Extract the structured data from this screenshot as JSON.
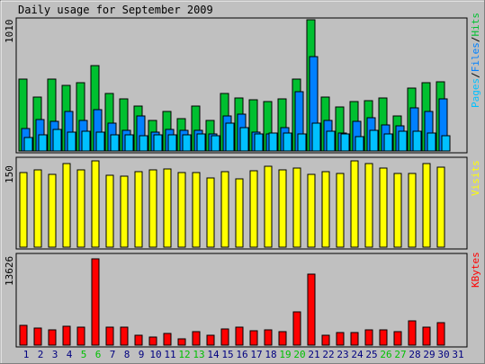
{
  "title": "Daily usage for September 2009",
  "colors": {
    "background": "#c0c0c0",
    "hits": "#00c030",
    "files": "#0080ff",
    "pages": "#00c0ff",
    "visits": "#ffff00",
    "kbytes": "#ff0000",
    "weekend_label": "#00c000",
    "weekday_label": "#000080"
  },
  "chart_data": [
    {
      "type": "bar",
      "name": "pages-files-hits",
      "ymax_label": "1010",
      "ylim": [
        0,
        1010
      ],
      "legend": [
        {
          "text": "Pages",
          "color": "#00c0ff"
        },
        {
          "text": "/",
          "color": "#000000"
        },
        {
          "text": "Files",
          "color": "#0080ff"
        },
        {
          "text": "/",
          "color": "#000000"
        },
        {
          "text": "Hits",
          "color": "#00c030"
        }
      ],
      "categories": [
        "1",
        "2",
        "3",
        "4",
        "5",
        "6",
        "7",
        "8",
        "9",
        "10",
        "11",
        "12",
        "13",
        "14",
        "15",
        "16",
        "17",
        "18",
        "19",
        "20",
        "21",
        "22",
        "23",
        "24",
        "25",
        "26",
        "27",
        "28",
        "29",
        "30",
        "31"
      ],
      "series": [
        {
          "name": "Hits",
          "values": [
            550,
            417,
            550,
            503,
            526,
            659,
            441,
            402,
            348,
            235,
            301,
            252,
            348,
            233,
            441,
            411,
            395,
            378,
            403,
            553,
            1010,
            413,
            336,
            380,
            386,
            409,
            267,
            483,
            527,
            534,
            0
          ]
        },
        {
          "name": "Files",
          "values": [
            171,
            241,
            225,
            301,
            234,
            318,
            216,
            161,
            267,
            146,
            163,
            157,
            156,
            134,
            272,
            286,
            145,
            132,
            179,
            454,
            725,
            233,
            141,
            229,
            253,
            199,
            196,
            335,
            302,
            402,
            0
          ]
        },
        {
          "name": "Pages",
          "values": [
            107,
            126,
            163,
            145,
            149,
            143,
            122,
            124,
            117,
            124,
            125,
            126,
            131,
            120,
            212,
            181,
            130,
            137,
            136,
            132,
            212,
            154,
            129,
            108,
            161,
            134,
            151,
            155,
            138,
            117,
            0
          ]
        }
      ]
    },
    {
      "type": "bar",
      "name": "visits",
      "ymax_label": "150",
      "ylim": [
        0,
        150
      ],
      "legend": [
        {
          "text": "Visits",
          "color": "#ffff00"
        }
      ],
      "categories": [
        "1",
        "2",
        "3",
        "4",
        "5",
        "6",
        "7",
        "8",
        "9",
        "10",
        "11",
        "12",
        "13",
        "14",
        "15",
        "16",
        "17",
        "18",
        "19",
        "20",
        "21",
        "22",
        "23",
        "24",
        "25",
        "26",
        "27",
        "28",
        "29",
        "30",
        "31"
      ],
      "series": [
        {
          "name": "Visits",
          "values": [
            129,
            134,
            127,
            146,
            134,
            150,
            125,
            124,
            131,
            134,
            136,
            130,
            129,
            120,
            131,
            118,
            133,
            140,
            135,
            138,
            127,
            132,
            128,
            150,
            146,
            137,
            128,
            128,
            145,
            139,
            0
          ]
        }
      ]
    },
    {
      "type": "bar",
      "name": "kbytes",
      "ymax_label": "13626",
      "ylim": [
        0,
        13626
      ],
      "legend": [
        {
          "text": "KBytes",
          "color": "#ff0000"
        }
      ],
      "categories": [
        "1",
        "2",
        "3",
        "4",
        "5",
        "6",
        "7",
        "8",
        "9",
        "10",
        "11",
        "12",
        "13",
        "14",
        "15",
        "16",
        "17",
        "18",
        "19",
        "20",
        "21",
        "22",
        "23",
        "24",
        "25",
        "26",
        "27",
        "28",
        "29",
        "30",
        "31"
      ],
      "series": [
        {
          "name": "KBytes",
          "values": [
            3100,
            2700,
            2450,
            3000,
            2900,
            13626,
            2800,
            2800,
            1600,
            1300,
            1900,
            1000,
            2100,
            1600,
            2600,
            2800,
            2300,
            2400,
            2200,
            5300,
            11200,
            1600,
            2000,
            2000,
            2400,
            2400,
            2200,
            3900,
            2800,
            3500,
            0
          ]
        }
      ]
    }
  ],
  "day_labels": [
    {
      "day": "1",
      "weekend": false
    },
    {
      "day": "2",
      "weekend": false
    },
    {
      "day": "3",
      "weekend": false
    },
    {
      "day": "4",
      "weekend": false
    },
    {
      "day": "5",
      "weekend": true
    },
    {
      "day": "6",
      "weekend": true
    },
    {
      "day": "7",
      "weekend": false
    },
    {
      "day": "8",
      "weekend": false
    },
    {
      "day": "9",
      "weekend": false
    },
    {
      "day": "10",
      "weekend": false
    },
    {
      "day": "11",
      "weekend": false
    },
    {
      "day": "12",
      "weekend": true
    },
    {
      "day": "13",
      "weekend": true
    },
    {
      "day": "14",
      "weekend": false
    },
    {
      "day": "15",
      "weekend": false
    },
    {
      "day": "16",
      "weekend": false
    },
    {
      "day": "17",
      "weekend": false
    },
    {
      "day": "18",
      "weekend": false
    },
    {
      "day": "19",
      "weekend": true
    },
    {
      "day": "20",
      "weekend": true
    },
    {
      "day": "21",
      "weekend": false
    },
    {
      "day": "22",
      "weekend": false
    },
    {
      "day": "23",
      "weekend": false
    },
    {
      "day": "24",
      "weekend": false
    },
    {
      "day": "25",
      "weekend": false
    },
    {
      "day": "26",
      "weekend": true
    },
    {
      "day": "27",
      "weekend": true
    },
    {
      "day": "28",
      "weekend": false
    },
    {
      "day": "29",
      "weekend": false
    },
    {
      "day": "30",
      "weekend": false
    },
    {
      "day": "31",
      "weekend": false
    }
  ]
}
